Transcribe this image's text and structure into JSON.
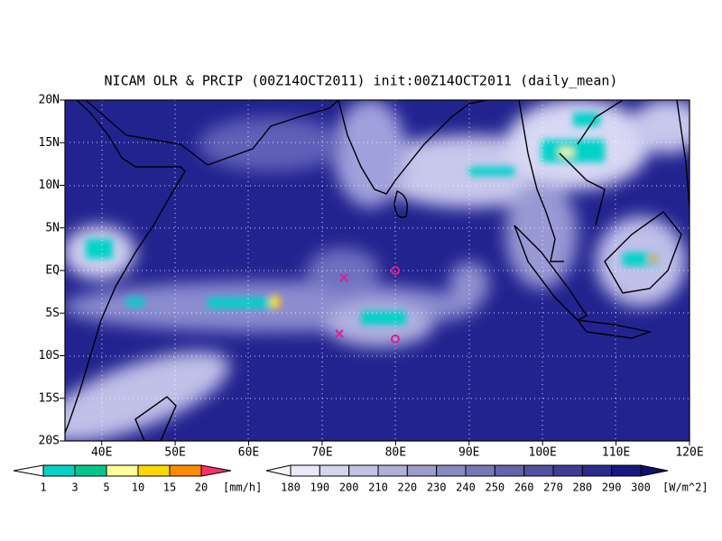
{
  "map": {
    "title": "NICAM OLR & PRCIP (00Z14OCT2011) init:00Z14OCT2011 (daily_mean)",
    "lat_labels": [
      "20N",
      "15N",
      "10N",
      "5N",
      "EQ",
      "5S",
      "10S",
      "15S",
      "20S"
    ],
    "lon_labels": [
      "40E",
      "50E",
      "60E",
      "70E",
      "80E",
      "90E",
      "100E",
      "110E",
      "120E"
    ]
  },
  "precip_scale": {
    "labels": [
      "1",
      "3",
      "5",
      "10",
      "15",
      "20"
    ],
    "unit": "[mm/h]"
  },
  "olr_scale": {
    "labels": [
      "180",
      "190",
      "200",
      "210",
      "220",
      "230",
      "240",
      "250",
      "260",
      "270",
      "280",
      "290",
      "300"
    ],
    "unit": "[W/m^2]"
  }
}
